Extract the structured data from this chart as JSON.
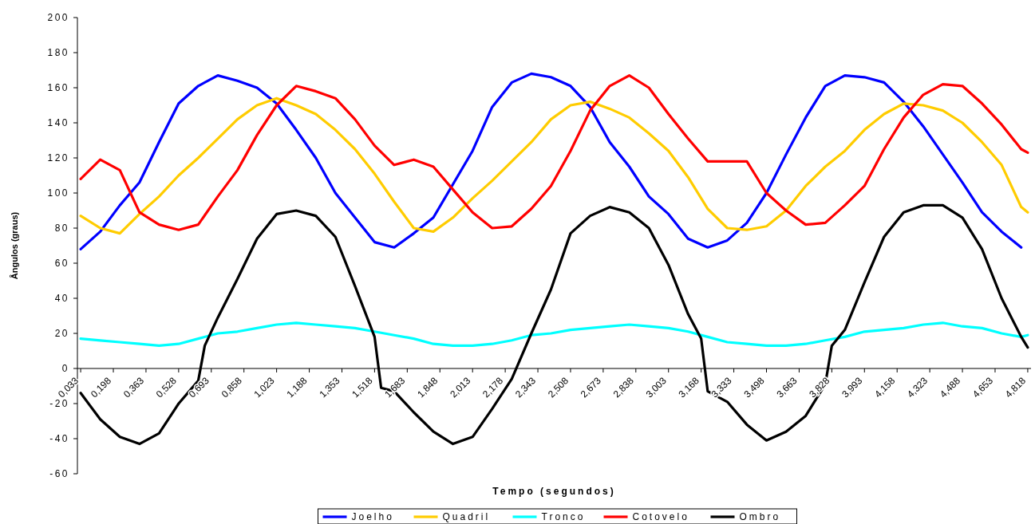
{
  "chart_data": {
    "type": "line",
    "xlabel": "Tempo (segundos)",
    "ylabel": "Ângulos (graus)",
    "legend": "bottom",
    "xlim": [
      0.0165,
      4.8345
    ],
    "ylim": [
      -60,
      200
    ],
    "yticks": [
      -60,
      -40,
      -20,
      0,
      20,
      40,
      60,
      80,
      100,
      120,
      140,
      160,
      180,
      200
    ],
    "xticks": [
      {
        "value": 0.033,
        "label": "0,033"
      },
      {
        "value": 0.198,
        "label": "0,198"
      },
      {
        "value": 0.363,
        "label": "0,363"
      },
      {
        "value": 0.528,
        "label": "0,528"
      },
      {
        "value": 0.693,
        "label": "0,693"
      },
      {
        "value": 0.858,
        "label": "0,858"
      },
      {
        "value": 1.023,
        "label": "1,023"
      },
      {
        "value": 1.188,
        "label": "1,188"
      },
      {
        "value": 1.353,
        "label": "1,353"
      },
      {
        "value": 1.518,
        "label": "1,518"
      },
      {
        "value": 1.683,
        "label": "1,683"
      },
      {
        "value": 1.848,
        "label": "1,848"
      },
      {
        "value": 2.013,
        "label": "2,013"
      },
      {
        "value": 2.178,
        "label": "2,178"
      },
      {
        "value": 2.343,
        "label": "2,343"
      },
      {
        "value": 2.508,
        "label": "2,508"
      },
      {
        "value": 2.673,
        "label": "2,673"
      },
      {
        "value": 2.838,
        "label": "2,838"
      },
      {
        "value": 3.003,
        "label": "3,003"
      },
      {
        "value": 3.168,
        "label": "3,168"
      },
      {
        "value": 3.333,
        "label": "3,333"
      },
      {
        "value": 3.498,
        "label": "3,498"
      },
      {
        "value": 3.663,
        "label": "3,663"
      },
      {
        "value": 3.828,
        "label": "3,828"
      },
      {
        "value": 3.993,
        "label": "3,993"
      },
      {
        "value": 4.158,
        "label": "4,158"
      },
      {
        "value": 4.323,
        "label": "4,323"
      },
      {
        "value": 4.488,
        "label": "4,488"
      },
      {
        "value": 4.653,
        "label": "4,653"
      },
      {
        "value": 4.818,
        "label": "4,818"
      }
    ],
    "x": [
      0.033,
      0.132,
      0.231,
      0.33,
      0.429,
      0.528,
      0.627,
      0.726,
      0.825,
      0.924,
      1.023,
      1.122,
      1.221,
      1.32,
      1.419,
      1.518,
      1.617,
      1.716,
      1.815,
      1.914,
      2.013,
      2.112,
      2.211,
      2.31,
      2.409,
      2.508,
      2.607,
      2.706,
      2.805,
      2.904,
      3.003,
      3.102,
      3.201,
      3.3,
      3.399,
      3.498,
      3.597,
      3.696,
      3.795,
      3.894,
      3.993,
      4.092,
      4.191,
      4.29,
      4.389,
      4.488,
      4.587,
      4.686,
      4.785,
      4.818
    ],
    "series": [
      {
        "name": "Joelho",
        "color": "#0000ff",
        "values": [
          68,
          78,
          93,
          106,
          129,
          151,
          161,
          167,
          164,
          160,
          151,
          136,
          120,
          100,
          86,
          72,
          69,
          77,
          86,
          105,
          124,
          149,
          163,
          168,
          166,
          161,
          149,
          129,
          115,
          98,
          88,
          74,
          69,
          73,
          83,
          100,
          122,
          143,
          161,
          167,
          166,
          163,
          152,
          138,
          122,
          106,
          89,
          78,
          69,
          null
        ]
      },
      {
        "name": "Quadril",
        "color": "#ffcc00",
        "values": [
          87,
          80,
          77,
          88,
          98,
          110,
          120,
          131,
          142,
          150,
          154,
          150,
          145,
          136,
          125,
          111,
          95,
          80,
          78,
          86,
          97,
          107,
          118,
          129,
          142,
          150,
          152,
          148,
          143,
          134,
          124,
          109,
          91,
          80,
          79,
          81,
          90,
          104,
          115,
          124,
          136,
          145,
          151,
          150,
          147,
          140,
          129,
          116,
          92,
          89
        ]
      },
      {
        "name": "Tronco",
        "color": "#00ffff",
        "values": [
          17,
          16,
          15,
          14,
          13,
          14,
          17,
          20,
          21,
          23,
          25,
          26,
          25,
          24,
          23,
          21,
          19,
          17,
          14,
          13,
          13,
          14,
          16,
          19,
          20,
          22,
          23,
          24,
          25,
          24,
          23,
          21,
          18,
          15,
          14,
          13,
          13,
          14,
          16,
          18,
          21,
          22,
          23,
          25,
          26,
          24,
          23,
          20,
          18,
          19
        ]
      },
      {
        "name": "Cotovelo",
        "color": "#ff0000",
        "values": [
          108,
          119,
          113,
          89,
          82,
          79,
          82,
          98,
          113,
          133,
          150,
          161,
          158,
          154,
          142,
          127,
          116,
          119,
          115,
          102,
          89,
          80,
          81,
          91,
          104,
          124,
          147,
          161,
          167,
          160,
          145,
          131,
          118,
          118,
          118,
          100,
          90,
          82,
          83,
          93,
          104,
          125,
          143,
          156,
          162,
          161,
          151,
          139,
          125,
          123
        ]
      },
      {
        "name": "Ombro",
        "color": "#000000",
        "x": [
          0.033,
          0.132,
          0.231,
          0.33,
          0.429,
          0.528,
          0.627,
          0.66,
          0.726,
          0.825,
          0.924,
          1.023,
          1.122,
          1.221,
          1.32,
          1.419,
          1.518,
          1.551,
          1.617,
          1.716,
          1.815,
          1.914,
          2.013,
          2.112,
          2.211,
          2.31,
          2.409,
          2.508,
          2.607,
          2.706,
          2.805,
          2.904,
          3.003,
          3.102,
          3.168,
          3.201,
          3.3,
          3.399,
          3.498,
          3.597,
          3.696,
          3.795,
          3.828,
          3.894,
          3.993,
          4.092,
          4.191,
          4.29,
          4.389,
          4.488,
          4.587,
          4.686,
          4.785,
          4.818
        ],
        "values": [
          -14,
          -29,
          -39,
          -43,
          -37,
          -20,
          -7,
          13,
          29,
          51,
          74,
          88,
          90,
          87,
          75,
          47,
          18,
          -11,
          -13,
          -25,
          -36,
          -43,
          -39,
          -23,
          -6,
          20,
          45,
          77,
          87,
          92,
          89,
          80,
          59,
          31,
          17,
          -13,
          -19,
          -32,
          -41,
          -36,
          -27,
          -9,
          13,
          22,
          49,
          75,
          89,
          93,
          93,
          86,
          68,
          40,
          18,
          12
        ]
      }
    ]
  }
}
